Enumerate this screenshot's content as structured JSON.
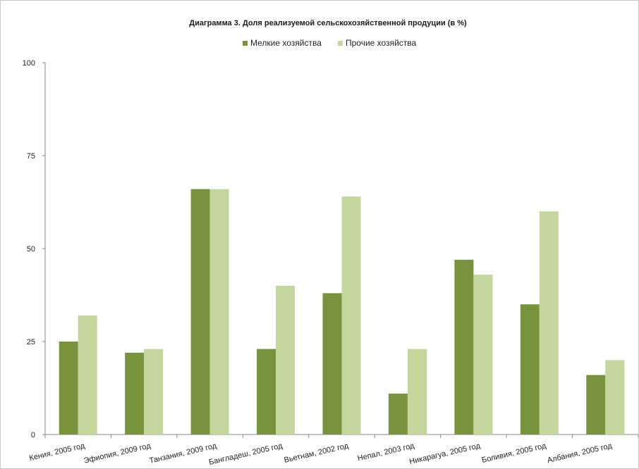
{
  "chart_data": {
    "type": "bar",
    "title": "Диаграмма 3. Доля реализуемой сельскохозяйственной продуции (в %)",
    "categories": [
      "Кения, 2005 год",
      "Эфиопия, 2009 год",
      "Танзания, 2009 год",
      "Бангладеш, 2005 год",
      "Вьетнам, 2002 год",
      "Непал, 2003 год",
      "Никарагуа, 2005 год",
      "Боливия, 2005 год",
      "Албания, 2005 год"
    ],
    "series": [
      {
        "name": "Мелкие хозяйства",
        "color": "#77933c",
        "values": [
          25,
          22,
          66,
          23,
          38,
          11,
          47,
          35,
          16
        ]
      },
      {
        "name": "Прочие хозяйства",
        "color": "#c3d69b",
        "values": [
          32,
          23,
          66,
          40,
          64,
          23,
          43,
          60,
          20
        ]
      }
    ],
    "ylim": [
      0,
      100
    ],
    "yticks": [
      "0",
      "25",
      "50",
      "75",
      "100"
    ],
    "xlabel": "",
    "ylabel": "",
    "grid": false,
    "legend": "top-center"
  }
}
